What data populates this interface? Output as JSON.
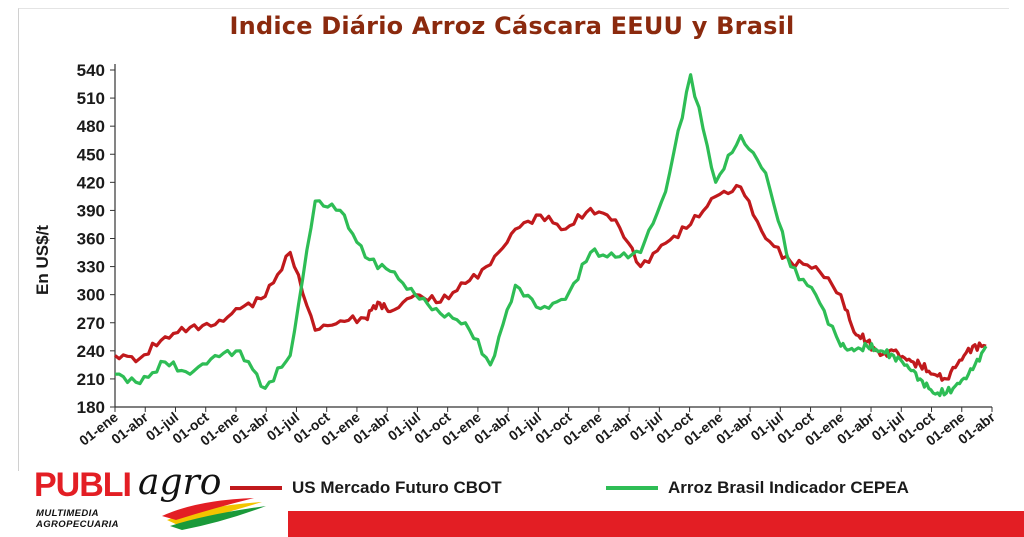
{
  "brand": {
    "word": "PUBLI",
    "script": "agro",
    "tagline_1": "MULTIMEDIA",
    "tagline_2": "AGROPECUARIA",
    "colors": {
      "red": "#e31e24",
      "yellow": "#f3c400",
      "green": "#1a9a3a"
    }
  },
  "chart_data": {
    "type": "line",
    "title": "Indice Diário Arroz Cáscara EEUU y Brasil",
    "ylabel": "En US$/t",
    "xlabel": "",
    "ylim": [
      180,
      540
    ],
    "yticks": [
      180,
      210,
      240,
      270,
      300,
      330,
      360,
      390,
      420,
      450,
      480,
      510,
      540
    ],
    "xlabels": [
      "01-ene",
      "01-abr",
      "01-jul",
      "01-oct",
      "01-ene",
      "01-abr",
      "01-jul",
      "01-oct",
      "01-ene",
      "01-abr",
      "01-jul",
      "01-oct",
      "01-ene",
      "01-abr",
      "01-jul",
      "01-oct",
      "01-ene",
      "01-abr",
      "01-jul",
      "01-oct",
      "01-ene",
      "01-abr",
      "01-jul",
      "01-oct",
      "01-ene",
      "01-abr",
      "01-jul",
      "01-oct",
      "01-ene",
      "01-abr"
    ],
    "legend_position": "bottom",
    "grid": false,
    "series": [
      {
        "name": "US Mercado Futuro CBOT",
        "color": "#c0191c",
        "x": [
          0,
          1,
          2,
          3,
          4,
          5,
          6,
          7,
          8,
          9,
          10,
          10.5,
          11,
          12,
          13,
          14,
          15,
          16,
          17,
          18,
          19,
          20,
          21,
          22,
          23,
          24,
          25,
          26,
          27,
          28,
          29
        ],
        "values": [
          235,
          232,
          255,
          265,
          268,
          285,
          298,
          345,
          262,
          272,
          275,
          292,
          282,
          300,
          292,
          312,
          332,
          370,
          385,
          370,
          392,
          380,
          330,
          355,
          375,
          405,
          415,
          360,
          335,
          330,
          300
        ]
      },
      {
        "name": "Arroz Brasil Indicador CEPEA",
        "color": "#2ebd55",
        "x": [
          0,
          1,
          2,
          3,
          4,
          5,
          6,
          7,
          8,
          9,
          10,
          11,
          12,
          13,
          14,
          15,
          16,
          17,
          18,
          19,
          20,
          21,
          22,
          23,
          24,
          25,
          26,
          27,
          28,
          29
        ],
        "values": [
          215,
          205,
          228,
          215,
          235,
          240,
          200,
          235,
          400,
          390,
          340,
          325,
          300,
          280,
          270,
          225,
          310,
          285,
          295,
          345,
          340,
          345,
          410,
          535,
          420,
          470,
          430,
          330,
          300,
          245
        ]
      }
    ],
    "series_tail": {
      "x": [
        29,
        30,
        31,
        32,
        33,
        34,
        35,
        36,
        37,
        38,
        39,
        40
      ],
      "red": [
        300,
        260,
        250,
        235,
        240,
        230,
        225,
        215,
        210,
        230,
        245,
        245
      ],
      "green": [
        245,
        240,
        245,
        240,
        235,
        225,
        210,
        195,
        195,
        205,
        220,
        245
      ]
    }
  }
}
